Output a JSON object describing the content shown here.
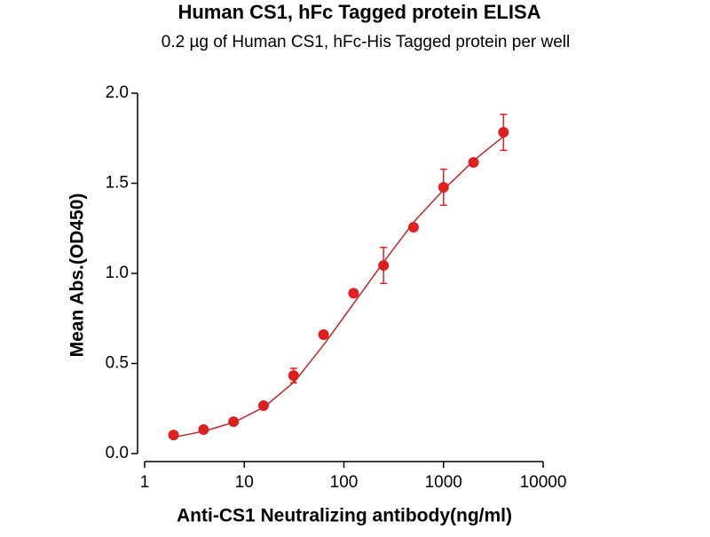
{
  "chart_data": {
    "type": "scatter",
    "title": "Human CS1, hFc Tagged protein ELISA",
    "subtitle": "0.2 µg of Human CS1, hFc-His Tagged protein per well",
    "xlabel": "Anti-CS1 Neutralizing antibody(ng/ml)",
    "ylabel": "Mean Abs.(OD450)",
    "xscale": "log",
    "xlim": [
      1,
      10000
    ],
    "xticks": [
      1,
      10,
      100,
      1000,
      10000
    ],
    "ylim": [
      0,
      2
    ],
    "yticks": [
      {
        "value": 0,
        "label": "0.0"
      },
      0.5,
      {
        "value": 1,
        "label": "1.0"
      },
      1.5,
      {
        "value": 2,
        "label": "2.0"
      }
    ],
    "series": [
      {
        "type": "scatter",
        "color": "#e02020",
        "x": [
          1.95,
          3.9,
          7.8,
          15.6,
          31.25,
          62.5,
          125,
          250,
          500,
          1000,
          2000,
          4000
        ],
        "values": [
          0.103,
          0.133,
          0.177,
          0.266,
          0.433,
          0.66,
          0.89,
          1.044,
          1.256,
          1.478,
          1.616,
          1.783
        ],
        "errors": [
          0.01,
          0.01,
          0.01,
          0.01,
          0.04,
          0.02,
          0.01,
          0.1,
          0.01,
          0.1,
          0.01,
          0.1
        ]
      },
      {
        "type": "line",
        "color": "#c02828",
        "x": [
          1.95,
          4,
          8,
          16,
          32,
          64,
          128,
          256,
          512,
          1024,
          2048,
          4000
        ],
        "values": [
          0.09,
          0.125,
          0.175,
          0.26,
          0.4,
          0.61,
          0.84,
          1.07,
          1.29,
          1.47,
          1.63,
          1.76
        ]
      }
    ]
  }
}
